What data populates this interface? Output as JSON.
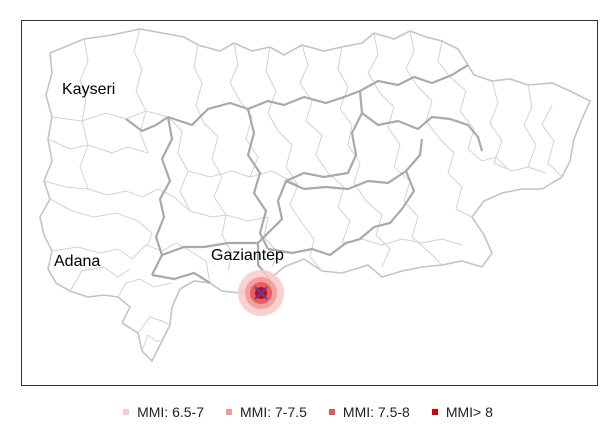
{
  "map": {
    "cities": [
      {
        "name": "Kayseri"
      },
      {
        "name": "Adana"
      },
      {
        "name": "Gaziantep"
      }
    ],
    "epicenter_marker": "x-mark",
    "colors": {
      "outer_boundary": "#c4c4c4",
      "district_boundary": "#d2d2d2",
      "province_boundary": "#a9a9a9",
      "epicenter_marker": "#3b4cc0"
    }
  },
  "legend": {
    "items": [
      {
        "label": "MMI: 6.5-7",
        "color": "#f7c9c9"
      },
      {
        "label": "MMI: 7-7.5",
        "color": "#f29a9a"
      },
      {
        "label": "MMI: 7.5-8",
        "color": "#ea5454"
      },
      {
        "label": "MMI> 8",
        "color": "#d90000"
      }
    ]
  }
}
